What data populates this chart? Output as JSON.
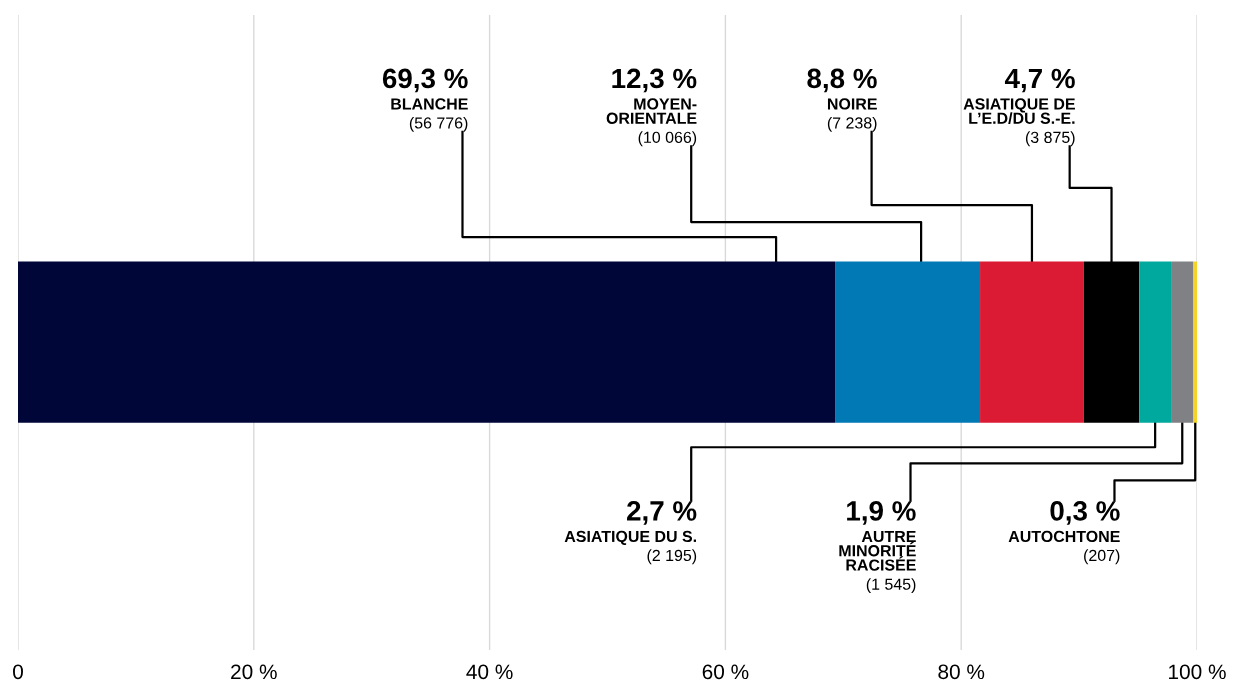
{
  "chart_data": {
    "type": "bar",
    "orientation": "horizontal",
    "stacked": true,
    "categories": [
      null
    ],
    "series": [
      {
        "color": "#000638",
        "values": [
          69.3
        ]
      },
      {
        "color": "#0079b5",
        "values": [
          12.3
        ]
      },
      {
        "color": "#db1a33",
        "values": [
          8.8
        ]
      },
      {
        "color": "#000000",
        "values": [
          4.7
        ]
      },
      {
        "color": "#00a99d",
        "values": [
          2.7
        ]
      },
      {
        "color": "#808184",
        "values": [
          1.9
        ]
      },
      {
        "color": "#f5d328",
        "values": [
          0.3
        ]
      }
    ],
    "annotations": [
      "69,3 %",
      "BLANCHE",
      "(56 776)",
      "12,3 %",
      "MOYEN-\nORIENTALE",
      "(10 066)",
      "8,8 %",
      "NOIRE",
      "(7 238)",
      "4,7 %",
      "ASIATIQUE DE\nL’E.D/DU S.-E.",
      "(3 875)",
      "2,7 %",
      "ASIATIQUE DU S.",
      "(2 195)",
      "1,9 %",
      "AUTRE\nMINORITÉ\nRACISÉE",
      "(1 545)",
      "0,3 %",
      "AUTOCHTONE",
      "(207)"
    ],
    "xlim": [
      0,
      100
    ],
    "xticks": [
      0,
      {
        "value": 20,
        "label": "20 %"
      },
      {
        "value": 40,
        "label": "40 %"
      },
      {
        "value": 60,
        "label": "60 %"
      },
      {
        "value": 80,
        "label": "80 %"
      },
      {
        "value": 100,
        "label": "100 %"
      }
    ],
    "grid": "x",
    "tick_labels": "x",
    "legend": false
  }
}
